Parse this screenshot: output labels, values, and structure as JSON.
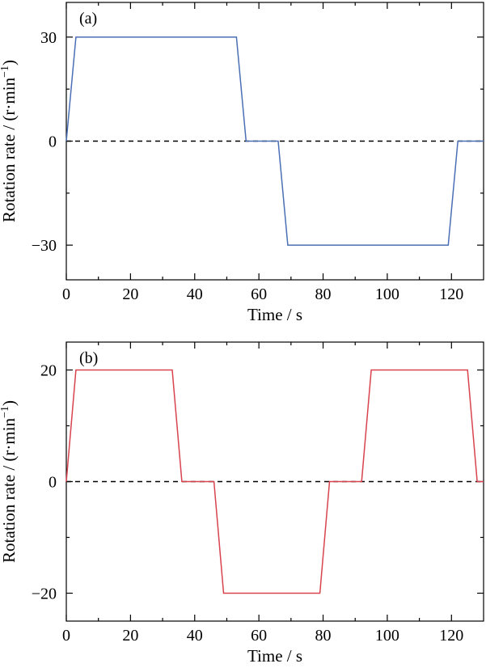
{
  "chart_data": [
    {
      "type": "line",
      "panel_label": "(a)",
      "title": "",
      "xlabel": "Time / s",
      "ylabel_main": "Rotation rate / (r·min",
      "ylabel_sup": "−1",
      "ylabel_close": ")",
      "xlim": [
        0,
        130
      ],
      "ylim": [
        -40,
        40
      ],
      "xticks": [
        0,
        20,
        40,
        60,
        80,
        100,
        120
      ],
      "xtick_labels": [
        "0",
        "20",
        "40",
        "60",
        "80",
        "100",
        "120"
      ],
      "yticks": [
        -30,
        0,
        30
      ],
      "ytick_labels": [
        "−30",
        "0",
        "30"
      ],
      "zero_line": true,
      "series": [
        {
          "color": "#4a6fb5",
          "x": [
            0,
            3,
            53,
            56,
            66,
            69,
            119,
            122,
            130
          ],
          "y": [
            0,
            30,
            30,
            0,
            0,
            -30,
            -30,
            0,
            0
          ]
        }
      ]
    },
    {
      "type": "line",
      "panel_label": "(b)",
      "title": "",
      "xlabel": "Time / s",
      "ylabel_main": "Rotation rate / (r·min",
      "ylabel_sup": "−1",
      "ylabel_close": ")",
      "xlim": [
        0,
        130
      ],
      "ylim": [
        -25,
        25
      ],
      "xticks": [
        0,
        20,
        40,
        60,
        80,
        100,
        120
      ],
      "xtick_labels": [
        "0",
        "20",
        "40",
        "60",
        "80",
        "100",
        "120"
      ],
      "yticks": [
        -20,
        0,
        20
      ],
      "ytick_labels": [
        "−20",
        "0",
        "20"
      ],
      "zero_line": true,
      "series": [
        {
          "color": "#d9434e",
          "x": [
            0,
            3,
            33,
            36,
            46,
            49,
            79,
            82,
            92,
            95,
            125,
            128,
            130
          ],
          "y": [
            0,
            20,
            20,
            0,
            0,
            -20,
            -20,
            0,
            0,
            20,
            20,
            0,
            0
          ]
        }
      ]
    }
  ]
}
